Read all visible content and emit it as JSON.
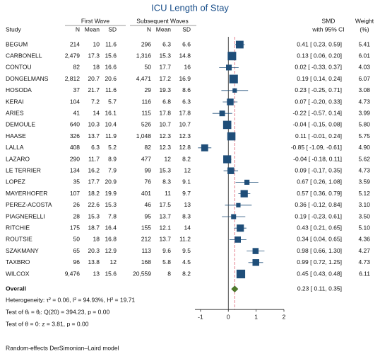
{
  "chart_data": {
    "type": "forest",
    "title": "ICU Length of Stay",
    "group_headers": [
      "First Wave",
      "Subsequent Waves"
    ],
    "columns": [
      "Study",
      "N",
      "Mean",
      "SD",
      "N",
      "Mean",
      "SD"
    ],
    "effect_header": [
      "SMD",
      "with 95% CI"
    ],
    "weight_header": [
      "Weight",
      "(%)"
    ],
    "rows": [
      {
        "study": "BEGUM",
        "cells": [
          "214",
          "10",
          "11.6",
          "296",
          "6.3",
          "6.6"
        ],
        "smd": 0.41,
        "ci": [
          0.23,
          0.59
        ],
        "smd_label": "0.41 [ 0.23, 0.59]",
        "weight": 5.41,
        "weight_label": "5.41"
      },
      {
        "study": "CARBONELL",
        "cells": [
          "2,479",
          "17.3",
          "15.6",
          "1,316",
          "15.3",
          "14.8"
        ],
        "smd": 0.13,
        "ci": [
          0.06,
          0.2
        ],
        "smd_label": "0.13 [ 0.06, 0.20]",
        "weight": 6.01,
        "weight_label": "6.01"
      },
      {
        "study": "CONTOU",
        "cells": [
          "82",
          "18",
          "16.6",
          "50",
          "17.7",
          "16"
        ],
        "smd": 0.02,
        "ci": [
          -0.33,
          0.37
        ],
        "smd_label": "0.02 [ -0.33, 0.37]",
        "weight": 4.03,
        "weight_label": "4.03"
      },
      {
        "study": "DONGELMANS",
        "cells": [
          "2,812",
          "20.7",
          "20.6",
          "4,471",
          "17.2",
          "16.9"
        ],
        "smd": 0.19,
        "ci": [
          0.14,
          0.24
        ],
        "smd_label": "0.19 [ 0.14, 0.24]",
        "weight": 6.07,
        "weight_label": "6.07"
      },
      {
        "study": "HOSODA",
        "cells": [
          "37",
          "21.7",
          "11.6",
          "29",
          "19.3",
          "8.6"
        ],
        "smd": 0.23,
        "ci": [
          -0.25,
          0.71
        ],
        "smd_label": "0.23 [ -0.25, 0.71]",
        "weight": 3.08,
        "weight_label": "3.08"
      },
      {
        "study": "KERAI",
        "cells": [
          "104",
          "7.2",
          "5.7",
          "116",
          "6.8",
          "6.3"
        ],
        "smd": 0.07,
        "ci": [
          -0.2,
          0.33
        ],
        "smd_label": "0.07 [ -0.20, 0.33]",
        "weight": 4.73,
        "weight_label": "4.73"
      },
      {
        "study": "ARIES",
        "cells": [
          "41",
          "14",
          "16.1",
          "115",
          "17.8",
          "17.8"
        ],
        "smd": -0.22,
        "ci": [
          -0.57,
          0.14
        ],
        "smd_label": "-0.22 [ -0.57, 0.14]",
        "weight": 3.99,
        "weight_label": "3.99"
      },
      {
        "study": "DEMOULE",
        "cells": [
          "640",
          "10.3",
          "10.4",
          "526",
          "10.7",
          "10.7"
        ],
        "smd": -0.04,
        "ci": [
          -0.15,
          0.08
        ],
        "smd_label": "-0.04 [ -0.15, 0.08]",
        "weight": 5.8,
        "weight_label": "5.80"
      },
      {
        "study": "HAASE",
        "cells": [
          "326",
          "13.7",
          "11.9",
          "1,048",
          "12.3",
          "12.3"
        ],
        "smd": 0.11,
        "ci": [
          -0.01,
          0.24
        ],
        "smd_label": "0.11 [ -0.01, 0.24]",
        "weight": 5.75,
        "weight_label": "5.75"
      },
      {
        "study": "LALLA",
        "cells": [
          "408",
          "6.3",
          "5.2",
          "82",
          "12.3",
          "12.8"
        ],
        "smd": -0.85,
        "ci": [
          -1.09,
          -0.61
        ],
        "smd_label": "-0.85 [ -1.09, -0.61]",
        "weight": 4.9,
        "weight_label": "4.90"
      },
      {
        "study": "LAZARO",
        "cells": [
          "290",
          "11.7",
          "8.9",
          "477",
          "12",
          "8.2"
        ],
        "smd": -0.04,
        "ci": [
          -0.18,
          0.11
        ],
        "smd_label": "-0.04 [ -0.18, 0.11]",
        "weight": 5.62,
        "weight_label": "5.62"
      },
      {
        "study": "LE TERRIER",
        "cells": [
          "134",
          "16.2",
          "7.9",
          "99",
          "15.3",
          "12"
        ],
        "smd": 0.09,
        "ci": [
          -0.17,
          0.35
        ],
        "smd_label": "0.09 [ -0.17, 0.35]",
        "weight": 4.73,
        "weight_label": "4.73"
      },
      {
        "study": "LOPEZ",
        "cells": [
          "35",
          "17.7",
          "20.9",
          "76",
          "8.3",
          "9.1"
        ],
        "smd": 0.67,
        "ci": [
          0.26,
          1.08
        ],
        "smd_label": "0.67 [ 0.26, 1.08]",
        "weight": 3.59,
        "weight_label": "3.59"
      },
      {
        "study": "MAYERHOFER",
        "cells": [
          "107",
          "18.2",
          "19.9",
          "401",
          "11",
          "9.7"
        ],
        "smd": 0.57,
        "ci": [
          0.36,
          0.79
        ],
        "smd_label": "0.57 [ 0.36, 0.79]",
        "weight": 5.12,
        "weight_label": "5.12"
      },
      {
        "study": "PEREZ-ACOSTA",
        "cells": [
          "26",
          "22.6",
          "15.3",
          "46",
          "17.5",
          "13"
        ],
        "smd": 0.36,
        "ci": [
          -0.12,
          0.84
        ],
        "smd_label": "0.36 [ -0.12, 0.84]",
        "weight": 3.1,
        "weight_label": "3.10"
      },
      {
        "study": "PIAGNERELLI",
        "cells": [
          "28",
          "15.3",
          "7.8",
          "95",
          "13.7",
          "8.3"
        ],
        "smd": 0.19,
        "ci": [
          -0.23,
          0.61
        ],
        "smd_label": "0.19 [ -0.23, 0.61]",
        "weight": 3.5,
        "weight_label": "3.50"
      },
      {
        "study": "RITCHIE",
        "cells": [
          "175",
          "18.7",
          "16.4",
          "155",
          "12.1",
          "14"
        ],
        "smd": 0.43,
        "ci": [
          0.21,
          0.65
        ],
        "smd_label": "0.43 [ 0.21, 0.65]",
        "weight": 5.1,
        "weight_label": "5.10"
      },
      {
        "study": "ROUTSIE",
        "cells": [
          "50",
          "18",
          "16.8",
          "212",
          "13.7",
          "11.2"
        ],
        "smd": 0.34,
        "ci": [
          0.04,
          0.65
        ],
        "smd_label": "0.34 [ 0.04, 0.65]",
        "weight": 4.36,
        "weight_label": "4.36"
      },
      {
        "study": "SZAKMANY",
        "cells": [
          "65",
          "20.3",
          "12.9",
          "113",
          "9.6",
          "9.5"
        ],
        "smd": 0.98,
        "ci": [
          0.66,
          1.3
        ],
        "smd_label": "0.98 [ 0.66, 1.30]",
        "weight": 4.27,
        "weight_label": "4.27"
      },
      {
        "study": "TAXBRO",
        "cells": [
          "96",
          "13.8",
          "12",
          "168",
          "5.8",
          "4.5"
        ],
        "smd": 0.99,
        "ci": [
          0.72,
          1.25
        ],
        "smd_label": "0.99 [ 0.72, 1.25]",
        "weight": 4.73,
        "weight_label": "4.73"
      },
      {
        "study": "WILCOX",
        "cells": [
          "9,476",
          "13",
          "15.6",
          "20,559",
          "8",
          "8.2"
        ],
        "smd": 0.45,
        "ci": [
          0.43,
          0.48
        ],
        "smd_label": "0.45 [ 0.43, 0.48]",
        "weight": 6.11,
        "weight_label": "6.11"
      }
    ],
    "overall": {
      "label": "Overall",
      "smd": 0.23,
      "ci": [
        0.11,
        0.35
      ],
      "smd_label": "0.23 [ 0.11, 0.35]"
    },
    "notes": [
      "Heterogeneity: τ² = 0.06, I² = 94.93%, H² = 19.71",
      "Test of θᵢ = θⱼ: Q(20) = 394.23, p = 0.00",
      "Test of θ = 0: z = 3.81, p = 0.00"
    ],
    "footnote": "Random-effects DerSimonian–Laird model",
    "xlim": [
      -1.2,
      2
    ],
    "xticks": [
      -1,
      0,
      1,
      2
    ],
    "marker_color": "#1f4e79",
    "overall_color": "#4f7a28",
    "overall_line_color": "#e06070"
  }
}
